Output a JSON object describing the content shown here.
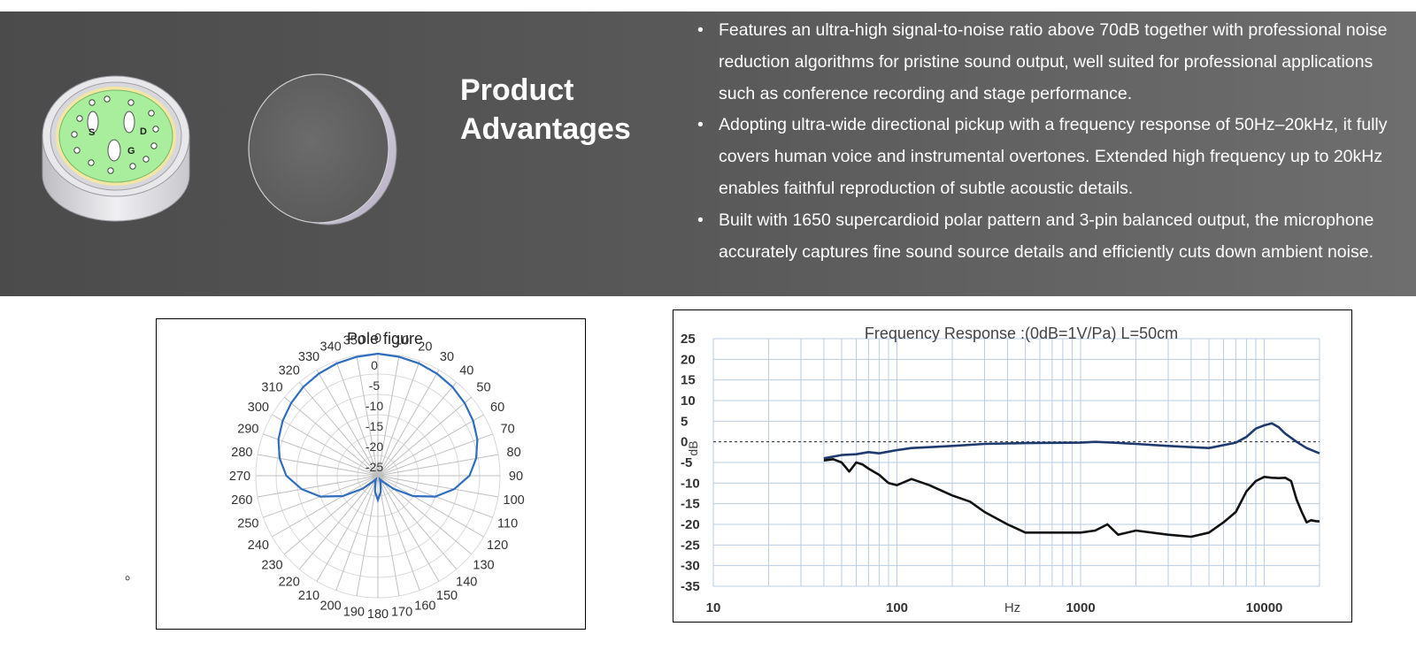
{
  "advantages": {
    "title_line1": "Product",
    "title_line2": "Advantages",
    "features": [
      "Features an ultra-high signal-to-noise ratio above 70dB together with professional noise reduction algorithms for pristine sound output, well suited for professional applications such as conference recording and stage performance.",
      "Adopting ultra-wide directional pickup with a frequency response of 50Hz–20kHz, it fully covers human voice and instrumental overtones. Extended high frequency up to 20kHz enables faithful reproduction of subtle acoustic details.",
      "Built with 1650 supercardioid polar pattern and 3-pin balanced output, the microphone accurately captures fine sound source details and efficiently cuts down ambient noise."
    ]
  },
  "capsule_labels": [
    "S",
    "D",
    "G"
  ],
  "stray_mark": "。",
  "colors": {
    "banner": "#555555",
    "capsule_face": "#a8ee9c",
    "polar_curve": "#2e6dc0",
    "freq_upper_curve": "#1f3a6e",
    "freq_lower_curve": "#111111",
    "grid": "#b9cbe6"
  },
  "chart_data": [
    {
      "type": "polar",
      "title": "Pole figure",
      "angle_labels": [
        "0",
        "10",
        "20",
        "30",
        "40",
        "50",
        "60",
        "70",
        "80",
        "90",
        "100",
        "110",
        "120",
        "130",
        "140",
        "150",
        "160",
        "170",
        "180",
        "190",
        "200",
        "210",
        "220",
        "230",
        "240",
        "250",
        "260",
        "270",
        "280",
        "290",
        "300",
        "310",
        "320",
        "330",
        "340",
        "350"
      ],
      "radial_ticks": [
        0,
        -5,
        -10,
        -15,
        -20,
        -25
      ],
      "radial_labels": [
        "0",
        "-5",
        "-10",
        "-15",
        "-20",
        "-25"
      ],
      "radial_range": [
        -30,
        0
      ],
      "series": [
        {
          "angles": [
            0,
            10,
            20,
            30,
            40,
            50,
            60,
            70,
            80,
            90,
            100,
            110,
            120,
            130,
            140,
            150,
            160,
            170,
            180,
            190,
            200,
            210,
            220,
            230,
            240,
            250,
            260,
            270,
            280,
            290,
            300,
            310,
            320,
            330,
            340,
            350
          ],
          "values": [
            0,
            -0.3,
            -0.6,
            -1,
            -1.5,
            -2.2,
            -3,
            -4,
            -5.5,
            -7.5,
            -11,
            -15,
            -20,
            -25,
            -28,
            -29,
            -28,
            -26,
            -24,
            -26,
            -28,
            -29,
            -28,
            -25,
            -20,
            -15,
            -11,
            -7.5,
            -5.5,
            -4,
            -3,
            -2.2,
            -1.5,
            -1,
            -0.6,
            -0.3
          ]
        }
      ]
    },
    {
      "type": "line",
      "title": "Frequency Response :(0dB=1V/Pa)  L=50cm",
      "xlabel": "Hz",
      "ylabel": "dB",
      "x_scale": "log",
      "xlim": [
        10,
        20000
      ],
      "ylim": [
        -35,
        25
      ],
      "x_tick_labels": [
        "10",
        "100",
        "1000",
        "10000"
      ],
      "y_ticks": [
        25,
        20,
        15,
        10,
        5,
        0,
        -5,
        -10,
        -15,
        -20,
        -25,
        -30,
        -35
      ],
      "y_tick_labels": [
        "25",
        "20",
        "15",
        "10",
        "5",
        "0",
        "-5",
        "-10",
        "-15",
        "-20",
        "-25",
        "-30",
        "-35"
      ],
      "series": [
        {
          "x": [
            40,
            50,
            60,
            70,
            80,
            100,
            120,
            150,
            200,
            300,
            500,
            1000,
            1200,
            1500,
            2000,
            3000,
            5000,
            7000,
            8000,
            9000,
            10000,
            11000,
            12000,
            13000,
            15000,
            17000,
            20000
          ],
          "y": [
            -4,
            -3.2,
            -3,
            -2.5,
            -2.8,
            -2,
            -1.5,
            -1.3,
            -1,
            -0.5,
            -0.3,
            -0.2,
            0,
            -0.2,
            -0.5,
            -1,
            -1.5,
            -0.2,
            1.2,
            3.2,
            4,
            4.5,
            3.5,
            2,
            0,
            -1.5,
            -2.8
          ]
        },
        {
          "x": [
            40,
            45,
            50,
            55,
            60,
            65,
            70,
            80,
            90,
            100,
            120,
            150,
            200,
            250,
            300,
            400,
            500,
            700,
            1000,
            1200,
            1400,
            1600,
            2000,
            3000,
            4000,
            5000,
            6000,
            7000,
            8000,
            9000,
            10000,
            11000,
            12000,
            13000,
            14000,
            15000,
            16000,
            17000,
            18000,
            19000,
            20000
          ],
          "y": [
            -4.5,
            -4.2,
            -5,
            -7.2,
            -5,
            -5.5,
            -6.5,
            -8,
            -10,
            -10.5,
            -9,
            -10.5,
            -13,
            -14.5,
            -17,
            -20,
            -22,
            -22,
            -22,
            -21.5,
            -20,
            -22.5,
            -21.5,
            -22.5,
            -23,
            -22,
            -19.5,
            -17,
            -12,
            -9.5,
            -8.5,
            -8.7,
            -8.8,
            -8.7,
            -9.5,
            -14,
            -17,
            -19.5,
            -19,
            -19.2,
            -19.3
          ]
        }
      ]
    }
  ]
}
